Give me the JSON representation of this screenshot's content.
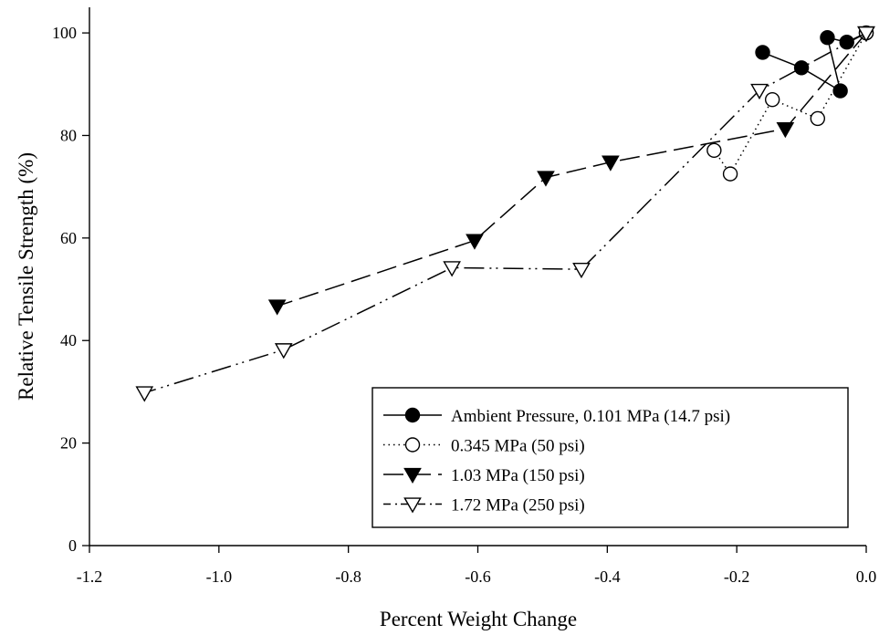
{
  "chart_data": {
    "type": "line",
    "title": "",
    "xlabel": "Percent Weight Change",
    "ylabel": "Relative Tensile Strength (%)",
    "xlim": [
      -1.2,
      0.0
    ],
    "ylim": [
      0,
      105
    ],
    "xticks": [
      -1.2,
      -1.0,
      -0.8,
      -0.6,
      -0.4,
      -0.2,
      0.0
    ],
    "xtick_labels": [
      "-1.2",
      "-1.0",
      "-0.8",
      "-0.6",
      "-0.4",
      "-0.2",
      "0.0"
    ],
    "yticks": [
      0,
      20,
      40,
      60,
      80,
      100
    ],
    "ytick_labels": [
      "0",
      "20",
      "40",
      "60",
      "80",
      "100"
    ],
    "grid": false,
    "legend_position": "bottom-right",
    "series": [
      {
        "name": "Ambient Pressure, 0.101 MPa (14.7 psi)",
        "marker": "filled-circle",
        "line_style": "solid",
        "x": [
          0.0,
          -0.03,
          -0.06,
          -0.04,
          -0.1,
          -0.16
        ],
        "y": [
          100,
          98.2,
          99.1,
          88.7,
          93.2,
          96.2
        ]
      },
      {
        "name": "0.345 MPa (50 psi)",
        "marker": "open-circle",
        "line_style": "dotted",
        "x": [
          0.0,
          -0.075,
          -0.145,
          -0.21,
          -0.235
        ],
        "y": [
          100,
          83.3,
          87.0,
          72.5,
          77.1
        ]
      },
      {
        "name": "1.03 MPa (150 psi)",
        "marker": "filled-triangle-down",
        "line_style": "dashed",
        "x": [
          0.0,
          -0.125,
          -0.395,
          -0.495,
          -0.605,
          -0.91
        ],
        "y": [
          100,
          81.3,
          74.8,
          71.8,
          59.5,
          46.7
        ]
      },
      {
        "name": "1.72 MPa (250 psi)",
        "marker": "open-triangle-down",
        "line_style": "dash-dot-dot",
        "x": [
          0.0,
          -0.165,
          -0.44,
          -0.64,
          -0.9,
          -1.115
        ],
        "y": [
          100,
          88.8,
          53.9,
          54.2,
          38.2,
          29.8
        ]
      }
    ]
  }
}
